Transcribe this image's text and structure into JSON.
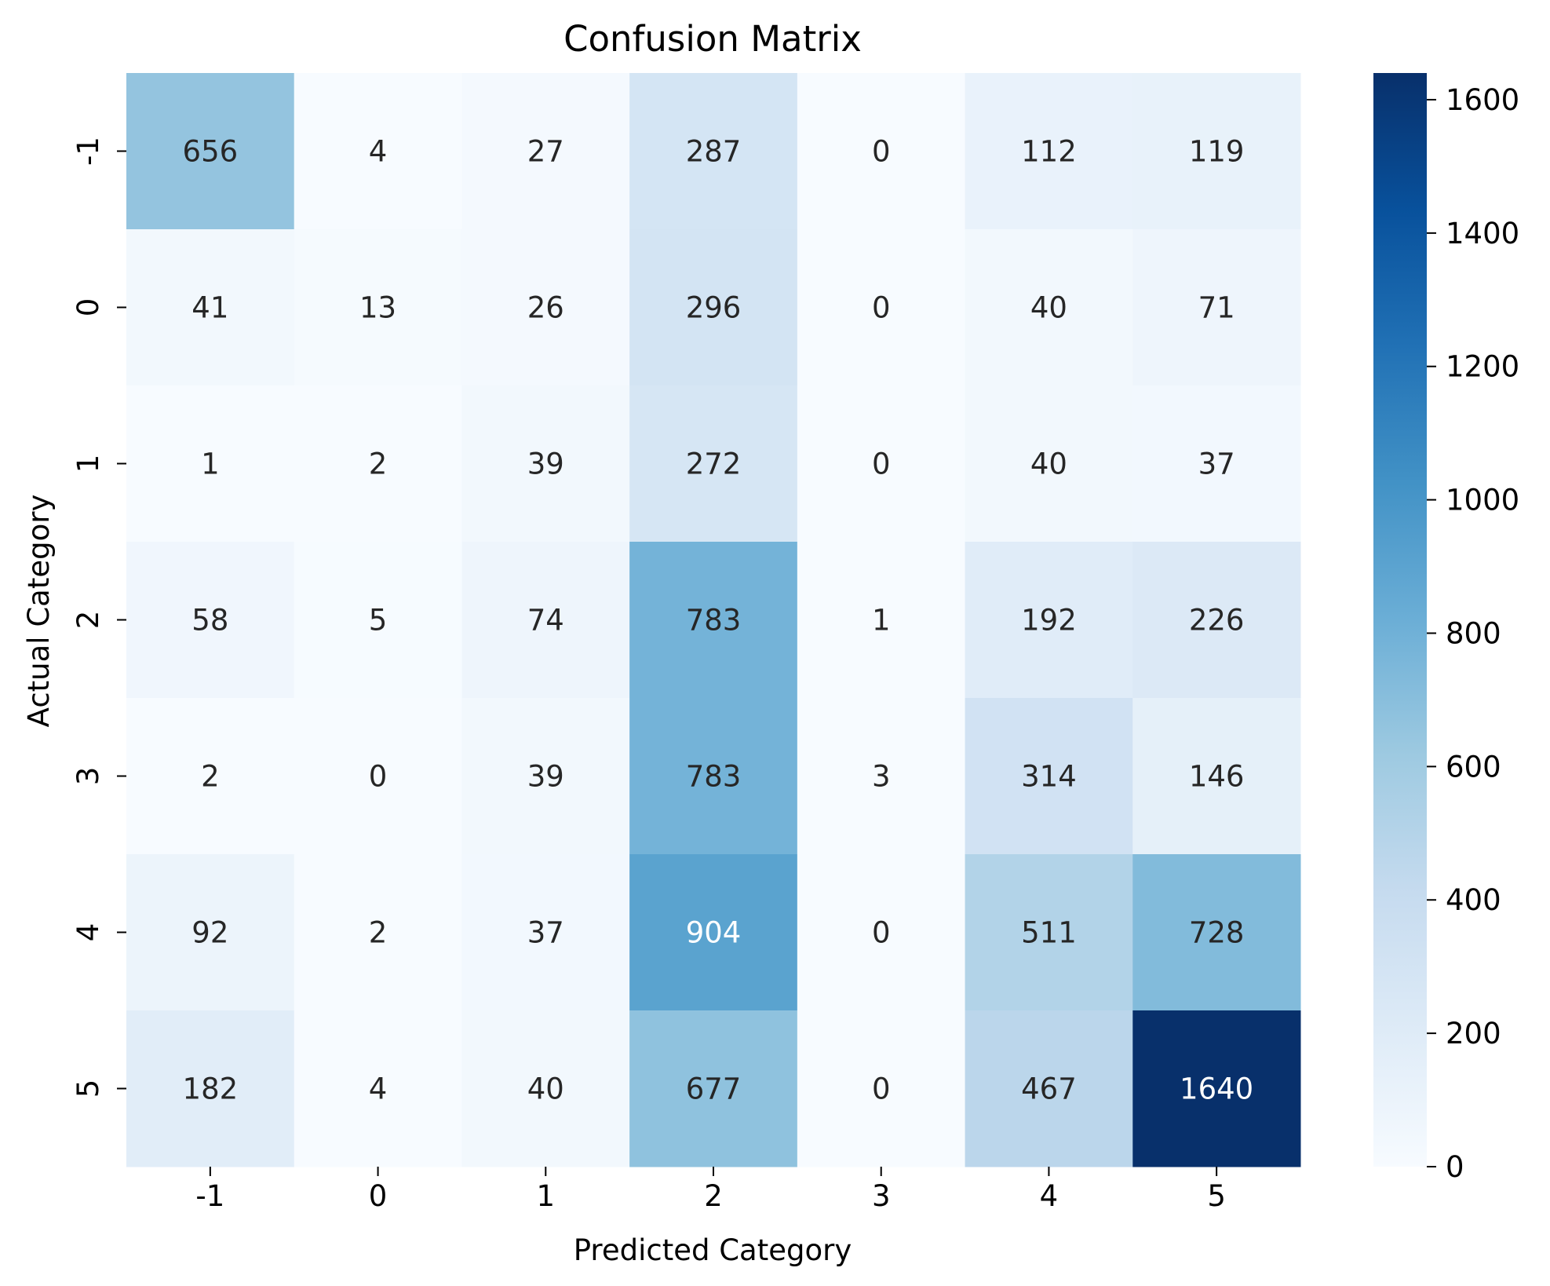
{
  "chart_data": {
    "type": "heatmap",
    "title": "Confusion Matrix",
    "xlabel": "Predicted Category",
    "ylabel": "Actual Category",
    "x_categories": [
      "-1",
      "0",
      "1",
      "2",
      "3",
      "4",
      "5"
    ],
    "y_categories": [
      "-1",
      "0",
      "1",
      "2",
      "3",
      "4",
      "5"
    ],
    "values": [
      [
        656,
        4,
        27,
        287,
        0,
        112,
        119
      ],
      [
        41,
        13,
        26,
        296,
        0,
        40,
        71
      ],
      [
        1,
        2,
        39,
        272,
        0,
        40,
        37
      ],
      [
        58,
        5,
        74,
        783,
        1,
        192,
        226
      ],
      [
        2,
        0,
        39,
        783,
        3,
        314,
        146
      ],
      [
        92,
        2,
        37,
        904,
        0,
        511,
        728
      ],
      [
        182,
        4,
        40,
        677,
        0,
        467,
        1640
      ]
    ],
    "colormap": "Blues",
    "colorbar": {
      "range": [
        0,
        1640
      ],
      "ticks": [
        "0",
        "200",
        "400",
        "600",
        "800",
        "1000",
        "1200",
        "1400",
        "1600"
      ]
    },
    "grid": false
  }
}
